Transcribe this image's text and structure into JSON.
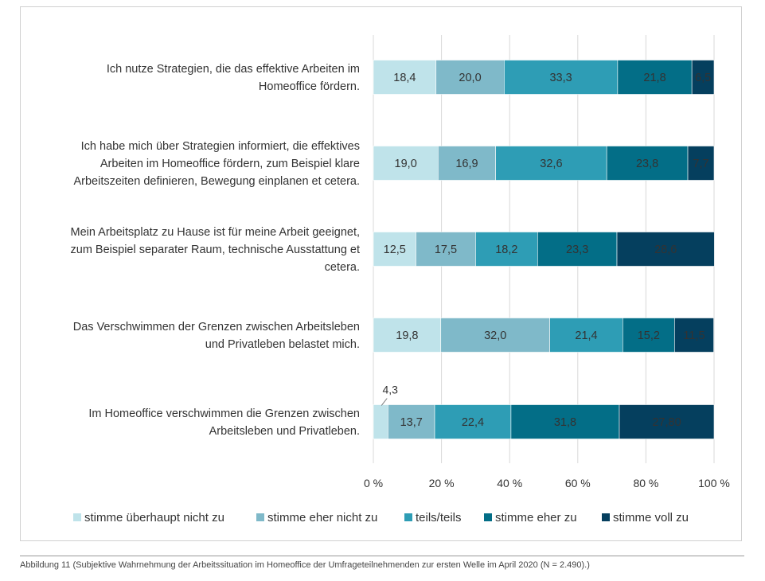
{
  "chart_data": {
    "type": "bar",
    "orientation": "horizontal",
    "stacked": true,
    "categories": [
      "Ich nutze Strategien, die das effektive Arbeiten im Homeoffice fördern.",
      "Ich habe mich über Strategien informiert, die effektives Arbeiten im Homeoffice fördern, zum Beispiel klare Arbeitszeiten definieren, Bewegung einplanen et cetera.",
      "Mein Arbeitsplatz zu Hause ist für meine Arbeit geeignet, zum Beispiel separater Raum, technische Ausstattung et cetera.",
      "Das Verschwimmen der Grenzen zwischen Arbeitsleben und Privatleben belastet mich.",
      "Im Homeoffice verschwimmen die Grenzen zwischen Arbeitsleben und Privatleben."
    ],
    "category_lines": [
      [
        "Ich nutze Strategien, die das effektive Arbeiten im",
        "Homeoffice fördern."
      ],
      [
        "Ich habe mich über Strategien informiert, die effektives",
        "Arbeiten im Homeoffice fördern, zum Beispiel klare",
        "Arbeitszeiten definieren, Bewegung einplanen et cetera."
      ],
      [
        "Mein Arbeitsplatz zu Hause ist für meine Arbeit geeignet,",
        "zum Beispiel separater Raum, technische Ausstattung et",
        "cetera."
      ],
      [
        "Das Verschwimmen der Grenzen zwischen Arbeitsleben",
        "und Privatleben belastet mich."
      ],
      [
        "Im Homeoffice verschwimmen die Grenzen zwischen",
        "Arbeitsleben und Privatleben."
      ]
    ],
    "series": [
      {
        "name": "stimme überhaupt nicht zu",
        "color": "#bfe3ea",
        "values": [
          18.4,
          19.0,
          12.5,
          19.8,
          4.3
        ],
        "labels": [
          "18,4",
          "19,0",
          "12,5",
          "19,8",
          "4,3"
        ]
      },
      {
        "name": "stimme eher nicht zu",
        "color": "#7fb9c9",
        "values": [
          20.0,
          16.9,
          17.5,
          32.0,
          13.7
        ],
        "labels": [
          "20,0",
          "16,9",
          "17,5",
          "32,0",
          "13,7"
        ]
      },
      {
        "name": "teils/teils",
        "color": "#2e9db5",
        "values": [
          33.3,
          32.6,
          18.2,
          21.4,
          22.4
        ],
        "labels": [
          "33,3",
          "32,6",
          "18,2",
          "21,4",
          "22,4"
        ]
      },
      {
        "name": "stimme eher zu",
        "color": "#036e87",
        "values": [
          21.8,
          23.8,
          23.3,
          15.2,
          31.8
        ],
        "labels": [
          "21,8",
          "23,8",
          "23,3",
          "15,2",
          "31,8"
        ]
      },
      {
        "name": "stimme voll zu",
        "color": "#053f5e",
        "values": [
          6.5,
          7.7,
          28.6,
          11.5,
          27.8
        ],
        "labels": [
          "6,5",
          "7,7",
          "28,6",
          "11,5",
          "27,80"
        ]
      }
    ],
    "xlim": [
      0,
      100
    ],
    "x_ticks": [
      "0 %",
      "20 %",
      "40 %",
      "60 %",
      "80 %",
      "100 %"
    ],
    "grid": true,
    "legend_position": "bottom"
  },
  "caption": "Abbildung 11 (Subjektive Wahrnehmung der Arbeitssituation im Homeoffice der Umfrageteilnehmenden zur ersten Welle im April 2020 (N = 2.490).)"
}
